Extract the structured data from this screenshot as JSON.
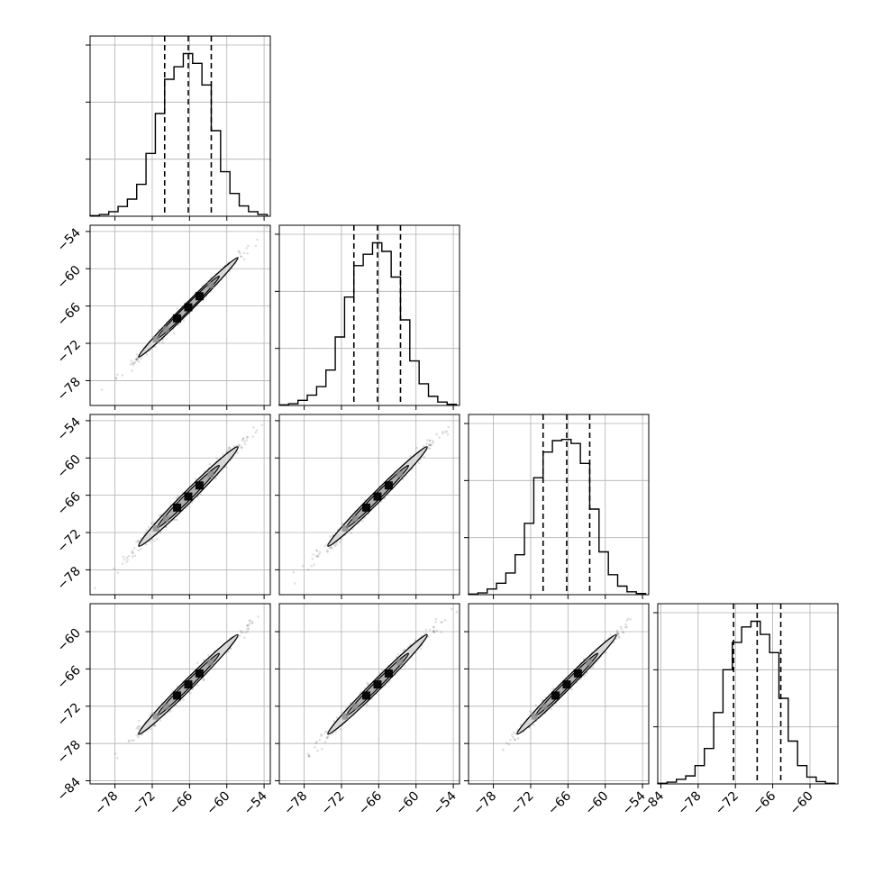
{
  "chart_data": {
    "type": "corner",
    "grid": true,
    "n_params": 4,
    "columns": [
      {
        "range": [
          -82,
          -53
        ],
        "ticks": [
          -78,
          -72,
          -66,
          -60,
          -54
        ],
        "tick_labels": [
          "−78",
          "−72",
          "−66",
          "−60",
          "−54"
        ]
      },
      {
        "range": [
          -82,
          -53
        ],
        "ticks": [
          -78,
          -72,
          -66,
          -60,
          -54
        ],
        "tick_labels": [
          "−78",
          "−72",
          "−66",
          "−60",
          "−54"
        ]
      },
      {
        "range": [
          -82,
          -53
        ],
        "ticks": [
          -78,
          -72,
          -66,
          -60,
          -54
        ],
        "tick_labels": [
          "−78",
          "−72",
          "−66",
          "−60",
          "−54"
        ]
      },
      {
        "range": [
          -84.5,
          -55.5
        ],
        "ticks": [
          -84,
          -78,
          -72,
          -66,
          -60
        ],
        "tick_labels": [
          "−84",
          "−78",
          "−72",
          "−66",
          "−60"
        ]
      }
    ],
    "rows": [
      {
        "range": [
          -82,
          -53
        ],
        "ticks": [
          -78,
          -72,
          -66,
          -60,
          -54
        ],
        "tick_labels": [
          "−78",
          "−72",
          "−66",
          "−60",
          "−54"
        ]
      },
      {
        "range": [
          -82,
          -53
        ],
        "ticks": [
          -78,
          -72,
          -66,
          -60,
          -54
        ],
        "tick_labels": [
          "−78",
          "−72",
          "−66",
          "−60",
          "−54"
        ]
      },
      {
        "range": [
          -82,
          -53
        ],
        "ticks": [
          -78,
          -72,
          -66,
          -60,
          -54
        ],
        "tick_labels": [
          "−78",
          "−72",
          "−66",
          "−60",
          "−54"
        ]
      },
      {
        "range": [
          -84.5,
          -55.5
        ],
        "ticks": [
          -84,
          -78,
          -72,
          -66,
          -60
        ],
        "tick_labels": [
          "−84",
          "−78",
          "−72",
          "−66",
          "−60"
        ]
      }
    ],
    "histograms": [
      {
        "bins": [
          -82.0,
          -80.5,
          -79.0,
          -77.5,
          -76.0,
          -74.5,
          -73.0,
          -71.5,
          -70.0,
          -68.5,
          -67.0,
          -65.5,
          -64.0,
          -62.5,
          -61.0,
          -59.5,
          -58.0,
          -56.5,
          -55.0,
          -53.5
        ],
        "counts": [
          1,
          3,
          8,
          17,
          30,
          56,
          110,
          180,
          240,
          262,
          285,
          268,
          230,
          150,
          78,
          40,
          18,
          8,
          3
        ],
        "quantiles": [
          -70.0,
          -66.2,
          -62.5
        ],
        "ylim": [
          0,
          300
        ],
        "yticks": [
          100,
          200,
          300
        ]
      },
      {
        "bins": [
          -82.0,
          -80.5,
          -79.0,
          -77.5,
          -76.0,
          -74.5,
          -73.0,
          -71.5,
          -70.0,
          -68.5,
          -67.0,
          -65.5,
          -64.0,
          -62.5,
          -61.0,
          -59.5,
          -58.0,
          -56.5,
          -55.0,
          -53.5
        ],
        "counts": [
          1,
          3,
          9,
          18,
          33,
          62,
          120,
          190,
          245,
          265,
          285,
          270,
          225,
          150,
          78,
          38,
          16,
          6,
          2
        ],
        "quantiles": [
          -70.0,
          -66.2,
          -62.5
        ],
        "ylim": [
          0,
          300
        ],
        "yticks": [
          100,
          200,
          300
        ]
      },
      {
        "bins": [
          -82.0,
          -80.5,
          -79.0,
          -77.5,
          -76.0,
          -74.5,
          -73.0,
          -71.5,
          -70.0,
          -68.5,
          -67.0,
          -65.5,
          -64.0,
          -62.5,
          -61.0,
          -59.5,
          -58.0,
          -56.5,
          -55.0,
          -53.5
        ],
        "counts": [
          1,
          3,
          10,
          20,
          38,
          70,
          125,
          205,
          250,
          270,
          272,
          265,
          230,
          150,
          75,
          35,
          15,
          5,
          2
        ],
        "quantiles": [
          -70.0,
          -66.2,
          -62.5
        ],
        "ylim": [
          0,
          300
        ],
        "yticks": [
          100,
          200,
          300
        ]
      },
      {
        "bins": [
          -84.5,
          -83.0,
          -81.5,
          -80.0,
          -78.5,
          -77.0,
          -75.5,
          -74.0,
          -72.5,
          -71.0,
          -69.5,
          -68.0,
          -66.5,
          -65.0,
          -63.5,
          -62.0,
          -60.5,
          -59.0,
          -57.5,
          -56.0
        ],
        "counts": [
          1,
          3,
          8,
          14,
          32,
          62,
          125,
          200,
          248,
          275,
          285,
          262,
          230,
          150,
          75,
          32,
          12,
          4,
          1
        ],
        "quantiles": [
          -72.3,
          -68.5,
          -64.7
        ],
        "ylim": [
          0,
          300
        ],
        "yticks": [
          100,
          200,
          300
        ]
      }
    ],
    "pairs": [
      {
        "row": 1,
        "col": 0,
        "center": [
          -66.2,
          -66.2
        ],
        "sd": [
          4.0,
          4.0
        ],
        "corr": 0.993
      },
      {
        "row": 2,
        "col": 0,
        "center": [
          -66.2,
          -66.2
        ],
        "sd": [
          4.0,
          4.0
        ],
        "corr": 0.988
      },
      {
        "row": 2,
        "col": 1,
        "center": [
          -66.2,
          -66.2
        ],
        "sd": [
          4.0,
          4.0
        ],
        "corr": 0.99
      },
      {
        "row": 3,
        "col": 0,
        "center": [
          -66.2,
          -68.5
        ],
        "sd": [
          4.0,
          4.0
        ],
        "corr": 0.99
      },
      {
        "row": 3,
        "col": 1,
        "center": [
          -66.2,
          -68.5
        ],
        "sd": [
          4.0,
          4.0
        ],
        "corr": 0.99
      },
      {
        "row": 3,
        "col": 2,
        "center": [
          -66.2,
          -68.5
        ],
        "sd": [
          4.0,
          4.0
        ],
        "corr": 0.991
      }
    ],
    "colors": {
      "line": "#000000",
      "grid": "#b0b0b0",
      "points": "#000000",
      "density_light": "#d8d8d8",
      "density_mid": "#8c8c8c",
      "density_dark": "#000000"
    }
  }
}
